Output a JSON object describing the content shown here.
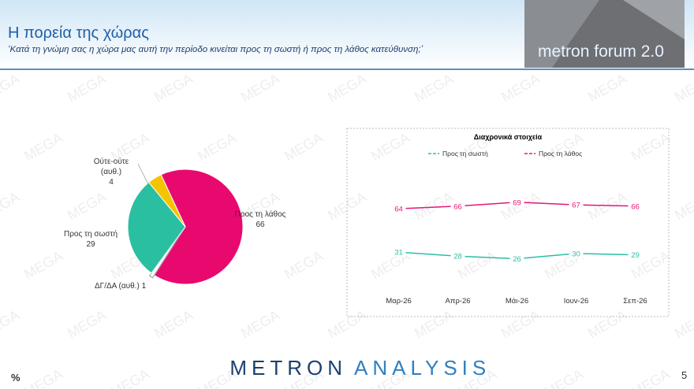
{
  "header": {
    "title": "Η πορεία της χώρας",
    "subtitle": "‘Κατά τη γνώμη σας η χώρα μας αυτή την περίοδο κινείται προς τη σωστή ή προς τη λάθος κατεύθυνση;’",
    "badge": "metron forum 2.0"
  },
  "watermark": "MEGA",
  "footer": {
    "logo_left": "METRON",
    "logo_right": "ANALYSIS",
    "unit": "%",
    "page": "5"
  },
  "chart_data": [
    {
      "type": "pie",
      "categories": [
        "Προς τη λάθος",
        "ΔΓ/ΔΑ (αυθ.)",
        "Προς τη σωστή",
        "Ούτε-ούτε (αυθ.)"
      ],
      "values": [
        66,
        1,
        29,
        4
      ],
      "colors": [
        "#e8096f",
        "#ffffff",
        "#2bbfa2",
        "#f5c400"
      ]
    },
    {
      "type": "line",
      "title": "Διαχρονικά στοιχεία",
      "categories": [
        "Μαρ-26",
        "Απρ-26",
        "Μάι-26",
        "Ιουν-26",
        "Σεπ-26"
      ],
      "series": [
        {
          "name": "Προς τη σωστή",
          "color": "#2bbfa2",
          "values": [
            31,
            28,
            26,
            30,
            29
          ]
        },
        {
          "name": "Προς τη λάθος",
          "color": "#e6177a",
          "values": [
            64,
            66,
            69,
            67,
            66
          ]
        }
      ],
      "ylim": [
        0,
        100
      ]
    }
  ]
}
